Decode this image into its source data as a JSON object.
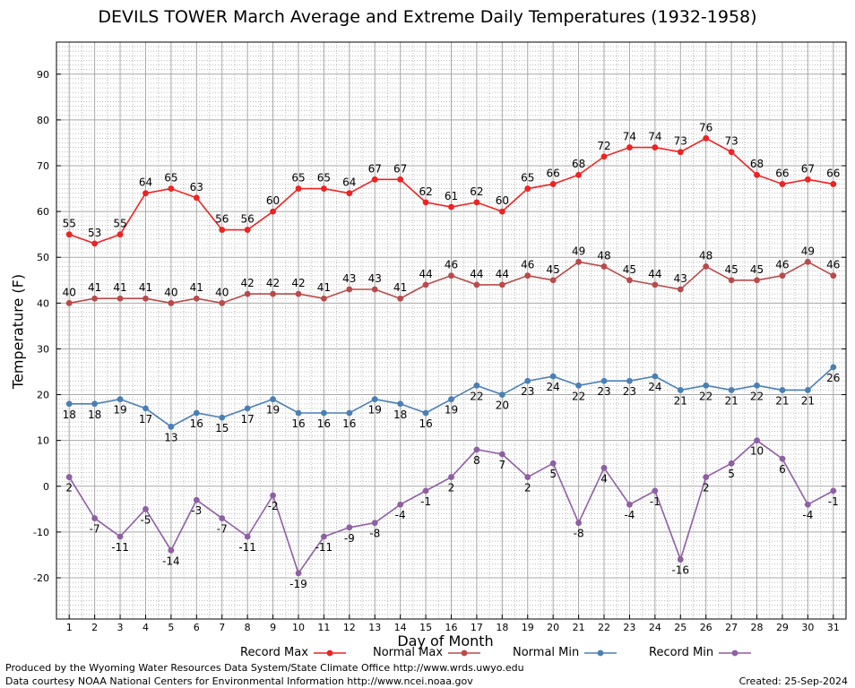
{
  "title": "DEVILS TOWER March Average and Extreme Daily Temperatures (1932-1958)",
  "footer": {
    "line1": "Produced by the Wyoming Water Resources Data System/State Climate Office http://www.wrds.uwyo.edu",
    "line2": "Data courtesy NOAA National Centers for Environmental Information http://www.ncei.noaa.gov",
    "created": "Created:  25-Sep-2024"
  },
  "chart_data": {
    "type": "line",
    "xlabel": "Day of Month",
    "ylabel": "Temperature (F)",
    "x": [
      1,
      2,
      3,
      4,
      5,
      6,
      7,
      8,
      9,
      10,
      11,
      12,
      13,
      14,
      15,
      16,
      17,
      18,
      19,
      20,
      21,
      22,
      23,
      24,
      25,
      26,
      27,
      28,
      29,
      30,
      31
    ],
    "xlim": [
      0.5,
      31.5
    ],
    "ylim": [
      -29,
      97
    ],
    "yticks": [
      -20,
      -10,
      0,
      10,
      20,
      30,
      40,
      50,
      60,
      70,
      80,
      90
    ],
    "grid": true,
    "legend_position": "bottom",
    "series": [
      {
        "name": "Record Max",
        "color": "#ee2222",
        "label_position": "above",
        "values": [
          55,
          53,
          55,
          64,
          65,
          63,
          56,
          56,
          60,
          65,
          65,
          64,
          67,
          67,
          62,
          61,
          62,
          60,
          65,
          66,
          68,
          72,
          74,
          74,
          73,
          76,
          73,
          68,
          66,
          67,
          66
        ]
      },
      {
        "name": "Normal Max",
        "color": "#b94a4a",
        "label_position": "above",
        "values": [
          40,
          41,
          41,
          41,
          40,
          41,
          40,
          42,
          42,
          42,
          41,
          43,
          43,
          41,
          44,
          46,
          44,
          44,
          46,
          45,
          49,
          48,
          45,
          44,
          43,
          48,
          45,
          45,
          46,
          49,
          46
        ]
      },
      {
        "name": "Normal Min",
        "color": "#4a7fb5",
        "label_position": "below",
        "values": [
          18,
          18,
          19,
          17,
          13,
          16,
          15,
          17,
          19,
          16,
          16,
          16,
          19,
          18,
          16,
          19,
          22,
          20,
          23,
          24,
          22,
          23,
          23,
          24,
          21,
          22,
          21,
          22,
          21,
          21,
          26
        ]
      },
      {
        "name": "Record Min",
        "color": "#8e5fa3",
        "label_position": "below",
        "values": [
          2,
          -7,
          -11,
          -5,
          -14,
          -3,
          -7,
          -11,
          -2,
          -19,
          -11,
          -9,
          -8,
          -4,
          -1,
          2,
          8,
          7,
          2,
          5,
          -8,
          4,
          -4,
          -1,
          -16,
          2,
          5,
          10,
          6,
          -4,
          -1
        ]
      }
    ]
  }
}
